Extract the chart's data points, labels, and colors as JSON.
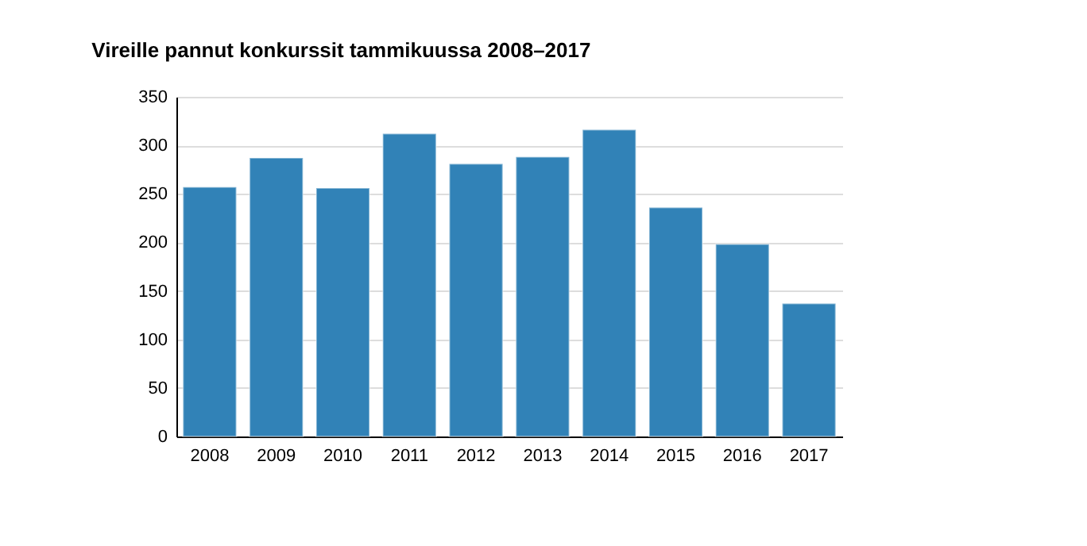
{
  "chart_data": {
    "type": "bar",
    "title": "Vireille pannut konkurssit tammikuussa 2008–2017",
    "categories": [
      "2008",
      "2009",
      "2010",
      "2011",
      "2012",
      "2013",
      "2014",
      "2015",
      "2016",
      "2017"
    ],
    "values": [
      257,
      287,
      256,
      312,
      281,
      288,
      316,
      236,
      198,
      137
    ],
    "color": "#3182b7",
    "ylim": [
      0,
      350
    ],
    "yticks": [
      0,
      50,
      100,
      150,
      200,
      250,
      300,
      350
    ],
    "grid": "y"
  }
}
